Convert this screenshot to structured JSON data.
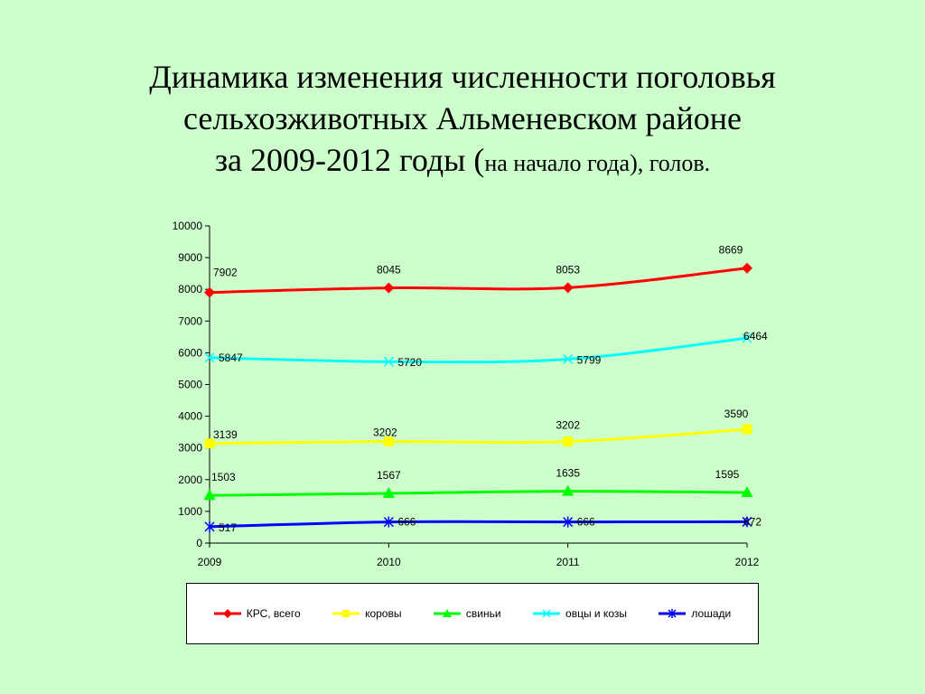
{
  "title": {
    "line1": "Динамика изменения численности поголовья",
    "line2": "сельхозживотных Альменевском районе",
    "line3_main": "за 2009-2012 годы (",
    "line3_small": "на начало года), голов."
  },
  "chart_data": {
    "type": "line",
    "x": [
      "2009",
      "2010",
      "2011",
      "2012"
    ],
    "ylim": [
      0,
      10000
    ],
    "yticks": [
      "0",
      "1000",
      "2000",
      "3000",
      "4000",
      "5000",
      "6000",
      "7000",
      "8000",
      "9000",
      "10000"
    ],
    "grid": false,
    "legend_position": "bottom",
    "series": [
      {
        "name": "КРС, всего",
        "values": [
          7902,
          8045,
          8053,
          8669
        ],
        "color": "#ff0000",
        "marker": "diamond"
      },
      {
        "name": "коровы",
        "values": [
          3139,
          3202,
          3202,
          3590
        ],
        "color": "#ffff00",
        "marker": "square"
      },
      {
        "name": "свиньи",
        "values": [
          1503,
          1567,
          1635,
          1595
        ],
        "color": "#00ff00",
        "marker": "triangle"
      },
      {
        "name": "овцы и козы",
        "values": [
          5847,
          5720,
          5799,
          6464
        ],
        "color": "#00ffff",
        "marker": "x"
      },
      {
        "name": "лошади",
        "values": [
          517,
          666,
          666,
          672
        ],
        "color": "#0000ff",
        "marker": "star"
      }
    ]
  }
}
